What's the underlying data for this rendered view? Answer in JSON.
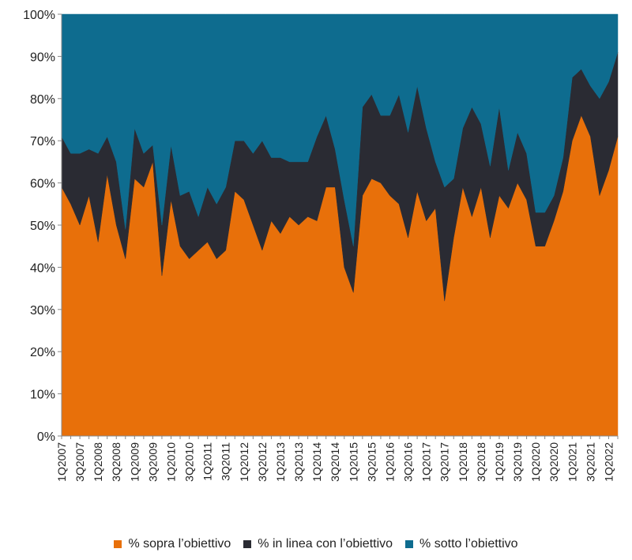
{
  "chart_data": {
    "type": "area",
    "stacked": true,
    "x": [
      "1Q2007",
      "2Q2007",
      "3Q2007",
      "4Q2007",
      "1Q2008",
      "2Q2008",
      "3Q2008",
      "4Q2008",
      "1Q2009",
      "2Q2009",
      "3Q2009",
      "4Q2009",
      "1Q2010",
      "2Q2010",
      "3Q2010",
      "4Q2010",
      "1Q2011",
      "2Q2011",
      "3Q2011",
      "4Q2011",
      "1Q2012",
      "2Q2012",
      "3Q2012",
      "4Q2012",
      "1Q2013",
      "2Q2013",
      "3Q2013",
      "4Q2013",
      "1Q2014",
      "2Q2014",
      "3Q2014",
      "4Q2014",
      "1Q2015",
      "2Q2015",
      "3Q2015",
      "4Q2015",
      "1Q2016",
      "2Q2016",
      "3Q2016",
      "4Q2016",
      "1Q2017",
      "2Q2017",
      "3Q2017",
      "4Q2017",
      "1Q2018",
      "2Q2018",
      "3Q2018",
      "4Q2018",
      "1Q2019",
      "2Q2019",
      "3Q2019",
      "4Q2019",
      "1Q2020",
      "2Q2020",
      "3Q2020",
      "4Q2020",
      "1Q2021",
      "2Q2021",
      "3Q2021",
      "4Q2021",
      "1Q2022",
      "2Q2022"
    ],
    "x_tick_labels": [
      "1Q2007",
      "3Q2007",
      "1Q2008",
      "3Q2008",
      "1Q2009",
      "3Q2009",
      "1Q2010",
      "3Q2010",
      "1Q2011",
      "3Q2011",
      "1Q2012",
      "3Q2012",
      "1Q2013",
      "3Q2013",
      "1Q2014",
      "3Q2014",
      "1Q2015",
      "3Q2015",
      "1Q2016",
      "3Q2016",
      "1Q2017",
      "3Q2017",
      "1Q2018",
      "3Q2018",
      "1Q2019",
      "3Q2019",
      "1Q2020",
      "3Q2020",
      "1Q2021",
      "3Q2021",
      "1Q2022"
    ],
    "y_tick_labels": [
      "0%",
      "10%",
      "20%",
      "30%",
      "40%",
      "50%",
      "60%",
      "70%",
      "80%",
      "90%",
      "100%"
    ],
    "ylim": [
      0,
      100
    ],
    "grid": false,
    "legend_position": "bottom",
    "series": [
      {
        "name": "% sopra l’obiettivo",
        "color": "#e8700a",
        "values": [
          59,
          55,
          50,
          57,
          46,
          62,
          50,
          42,
          61,
          59,
          65,
          38,
          56,
          45,
          42,
          44,
          46,
          42,
          44,
          58,
          56,
          50,
          44,
          51,
          48,
          52,
          50,
          52,
          51,
          59,
          59,
          40,
          34,
          57,
          61,
          60,
          57,
          55,
          47,
          58,
          51,
          54,
          32,
          47,
          59,
          52,
          59,
          47,
          57,
          54,
          60,
          56,
          45,
          45,
          51,
          58,
          70,
          76,
          71,
          57,
          63,
          71
        ]
      },
      {
        "name": "% in linea con l’obiettivo",
        "color": "#2a2b33",
        "values": [
          12,
          12,
          17,
          11,
          21,
          9,
          15,
          7,
          12,
          8,
          4,
          12,
          13,
          12,
          16,
          8,
          13,
          13,
          15,
          12,
          14,
          17,
          26,
          15,
          18,
          13,
          15,
          13,
          20,
          17,
          9,
          16,
          11,
          21,
          20,
          16,
          19,
          26,
          25,
          25,
          22,
          11,
          27,
          14,
          14,
          26,
          15,
          17,
          21,
          9,
          12,
          11,
          8,
          8,
          6,
          8,
          15,
          11,
          12,
          23,
          21,
          20
        ]
      },
      {
        "name": "% sotto l’obiettivo",
        "color": "#0e6c8f",
        "values": [
          29,
          33,
          33,
          32,
          33,
          29,
          35,
          51,
          27,
          33,
          31,
          50,
          31,
          43,
          42,
          48,
          41,
          45,
          41,
          30,
          30,
          33,
          30,
          34,
          34,
          35,
          35,
          35,
          29,
          24,
          32,
          44,
          55,
          22,
          19,
          24,
          24,
          19,
          28,
          17,
          27,
          35,
          41,
          39,
          27,
          22,
          26,
          36,
          22,
          37,
          28,
          33,
          47,
          47,
          43,
          34,
          15,
          13,
          17,
          20,
          16,
          9
        ]
      }
    ]
  }
}
